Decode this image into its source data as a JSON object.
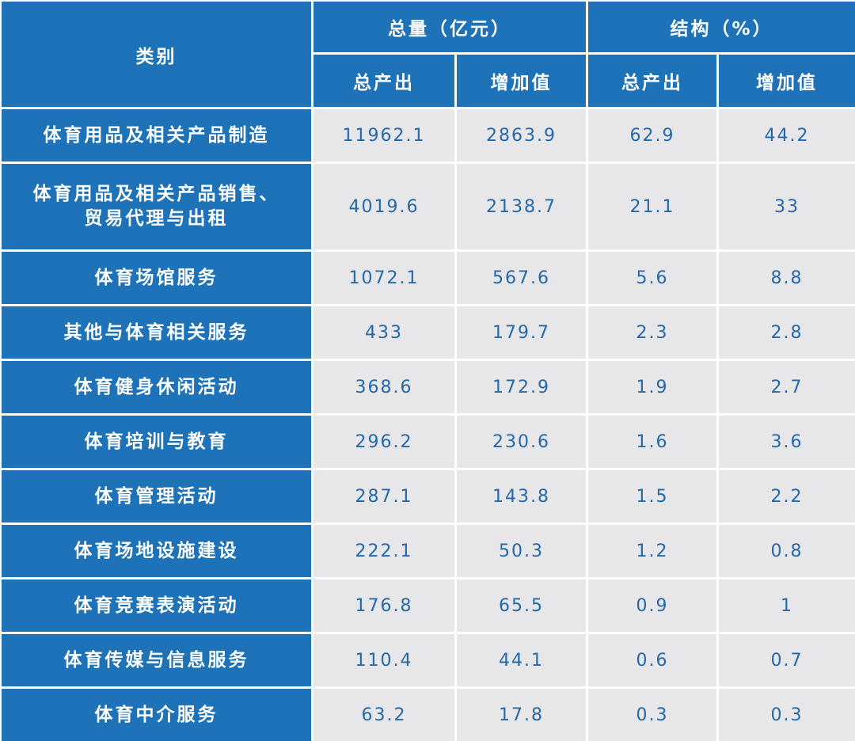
{
  "chart_data": {
    "type": "table",
    "header": {
      "category": "类别",
      "group_total": "总量（亿元）",
      "group_structure": "结构（%）",
      "sub": [
        "总产出",
        "增加值",
        "总产出",
        "增加值"
      ]
    },
    "rows": [
      {
        "category": "体育用品及相关产品制造",
        "values": [
          "11962.1",
          "2863.9",
          "62.9",
          "44.2"
        ]
      },
      {
        "category": "体育用品及相关产品销售、\n贸易代理与出租",
        "values": [
          "4019.6",
          "2138.7",
          "21.1",
          "33"
        ]
      },
      {
        "category": "体育场馆服务",
        "values": [
          "1072.1",
          "567.6",
          "5.6",
          "8.8"
        ]
      },
      {
        "category": "其他与体育相关服务",
        "values": [
          "433",
          "179.7",
          "2.3",
          "2.8"
        ]
      },
      {
        "category": "体育健身休闲活动",
        "values": [
          "368.6",
          "172.9",
          "1.9",
          "2.7"
        ]
      },
      {
        "category": "体育培训与教育",
        "values": [
          "296.2",
          "230.6",
          "1.6",
          "3.6"
        ]
      },
      {
        "category": "体育管理活动",
        "values": [
          "287.1",
          "143.8",
          "1.5",
          "2.2"
        ]
      },
      {
        "category": "体育场地设施建设",
        "values": [
          "222.1",
          "50.3",
          "1.2",
          "0.8"
        ]
      },
      {
        "category": "体育竞赛表演活动",
        "values": [
          "176.8",
          "65.5",
          "0.9",
          "1"
        ]
      },
      {
        "category": "体育传媒与信息服务",
        "values": [
          "110.4",
          "44.1",
          "0.6",
          "0.7"
        ]
      },
      {
        "category": "体育中介服务",
        "values": [
          "63.2",
          "17.8",
          "0.3",
          "0.3"
        ]
      }
    ],
    "colors": {
      "header_bg": "#1e73b8",
      "header_text": "#ffffff",
      "cell_bg": "#e7e6e8",
      "cell_text": "#2569a8"
    }
  }
}
